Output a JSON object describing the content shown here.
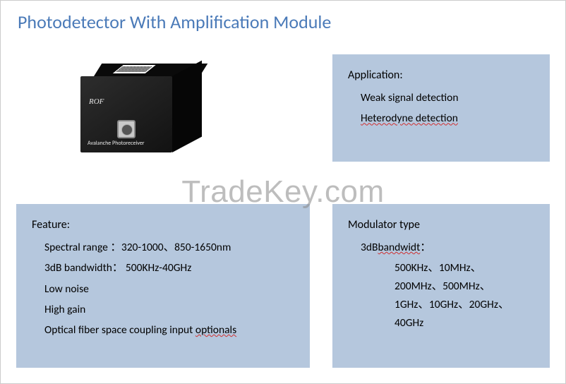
{
  "title": "Photodetector With Amplification Module",
  "watermark": "TradeKey.com",
  "device": {
    "brand": "ROF",
    "label": "Avalanche Photoreceiver"
  },
  "application": {
    "heading": "Application:",
    "items": [
      "Weak signal detection",
      "Heterodyne detection"
    ]
  },
  "feature": {
    "heading": "Feature:",
    "items": [
      "Spectral range ：320-1000、850-1650nm",
      "3dB bandwidth： 500KHz-40GHz",
      "Low noise",
      "High gain"
    ],
    "last_item_prefix": "Optical fiber space coupling input ",
    "last_item_squiggle": "optionals"
  },
  "modulator": {
    "heading": "Modulator type",
    "sub_prefix": "3dB",
    "sub_squiggle": "bandwidt",
    "sub_suffix": "：",
    "values": [
      "500KHz、10MHz、",
      "200MHz、500MHz、",
      "1GHz、10GHz、20GHz、",
      "40GHz"
    ]
  },
  "colors": {
    "title": "#4a7ab8",
    "box_bg": "#b5c7dd",
    "text": "#000000",
    "squiggle": "#d03030",
    "page_bg": "#ffffff"
  }
}
